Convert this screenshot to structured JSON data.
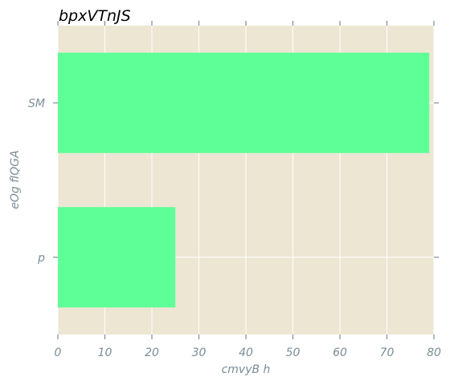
{
  "chart_data": {
    "type": "bar",
    "orientation": "horizontal",
    "title": "bpxVTnJS",
    "xlabel": "cmvyB h",
    "ylabel": "eOg fIQGA",
    "categories": [
      "SM",
      "p"
    ],
    "values": [
      79,
      25
    ],
    "xlim": [
      0,
      80
    ],
    "xticks": [
      0,
      10,
      20,
      30,
      40,
      50,
      60,
      70,
      80
    ],
    "grid": true,
    "bar_color": "#5fff97",
    "background_color": "#ede6d3",
    "grid_color": "#ffffff",
    "tick_color": "#7a8e96"
  }
}
